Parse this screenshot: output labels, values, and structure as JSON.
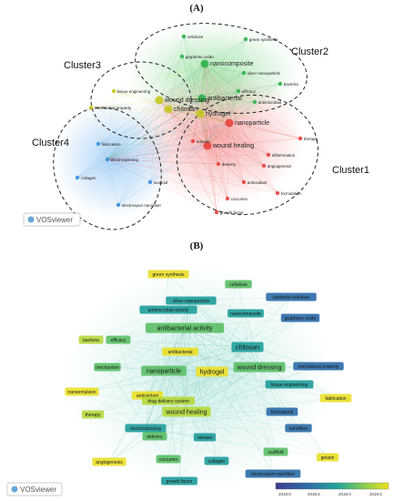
{
  "panel_a": {
    "title": "(A)",
    "clusters": [
      {
        "name": "Cluster1",
        "color": "#e8413c"
      },
      {
        "name": "Cluster2",
        "color": "#2db34a"
      },
      {
        "name": "Cluster3",
        "color": "#c8c820"
      },
      {
        "name": "Cluster4",
        "color": "#3a8fd8"
      }
    ],
    "nodes": [
      {
        "label": "wound healing",
        "cluster": 0,
        "big": true
      },
      {
        "label": "nanoparticle",
        "cluster": 0,
        "big": true
      },
      {
        "label": "delivery",
        "cluster": 0
      },
      {
        "label": "release",
        "cluster": 0
      },
      {
        "label": "antioxidant",
        "cluster": 0
      },
      {
        "label": "curcumin",
        "cluster": 0
      },
      {
        "label": "growth factor",
        "cluster": 0
      },
      {
        "label": "inflammation",
        "cluster": 0
      },
      {
        "label": "therapy",
        "cluster": 0
      },
      {
        "label": "angiogenesis",
        "cluster": 0
      },
      {
        "label": "formulation",
        "cluster": 0
      },
      {
        "label": "nanocomposite",
        "cluster": 1,
        "big": true
      },
      {
        "label": "antibacterial",
        "cluster": 1,
        "big": true
      },
      {
        "label": "cellulose",
        "cluster": 1
      },
      {
        "label": "green synthesis",
        "cluster": 1
      },
      {
        "label": "graphene oxide",
        "cluster": 1
      },
      {
        "label": "silver nanoparticle",
        "cluster": 1
      },
      {
        "label": "antimicrobial",
        "cluster": 1
      },
      {
        "label": "bacteria",
        "cluster": 1
      },
      {
        "label": "efficacy",
        "cluster": 1
      },
      {
        "label": "wound dressing",
        "cluster": 2,
        "big": true
      },
      {
        "label": "chitosan",
        "cluster": 2,
        "big": true
      },
      {
        "label": "hydrogel",
        "cluster": 2,
        "big": true
      },
      {
        "label": "tissue engineering",
        "cluster": 2
      },
      {
        "label": "mechanical property",
        "cluster": 2
      },
      {
        "label": "electrospinning",
        "cluster": 3
      },
      {
        "label": "scaffold",
        "cluster": 3
      },
      {
        "label": "fabrication",
        "cluster": 3
      },
      {
        "label": "electrospun nanofiber",
        "cluster": 3
      },
      {
        "label": "collagen",
        "cluster": 3
      }
    ],
    "brand": "VOSviewer"
  },
  "panel_b": {
    "title": "(B)",
    "labels": [
      "green synthesis",
      "cellulose",
      "silver nanoparticle",
      "bacterial cellulose",
      "antimicrobial activity",
      "nanocomposite",
      "graphene oxide",
      "antibacterial activity",
      "bacteria",
      "efficacy",
      "mechanism",
      "antibacterial",
      "chitosan",
      "nanoparticle",
      "hydrogel",
      "wound dressing",
      "mechanical property",
      "nanoemulsion",
      "antioxidant",
      "drug delivery system",
      "tissue engineering",
      "fabrication",
      "therapy",
      "wound healing",
      "biomaterial",
      "electrospinning",
      "nanofiber",
      "delivery",
      "scaffold",
      "gelatin",
      "angiogenesis",
      "collagen",
      "growth factor",
      "electrospun nanofiber",
      "curcumin",
      "release"
    ],
    "scale": {
      "min": "2018.0",
      "ticks": [
        "2018.0",
        "2018.5",
        "2019.0",
        "2019.5"
      ]
    },
    "brand": "VOSviewer"
  }
}
